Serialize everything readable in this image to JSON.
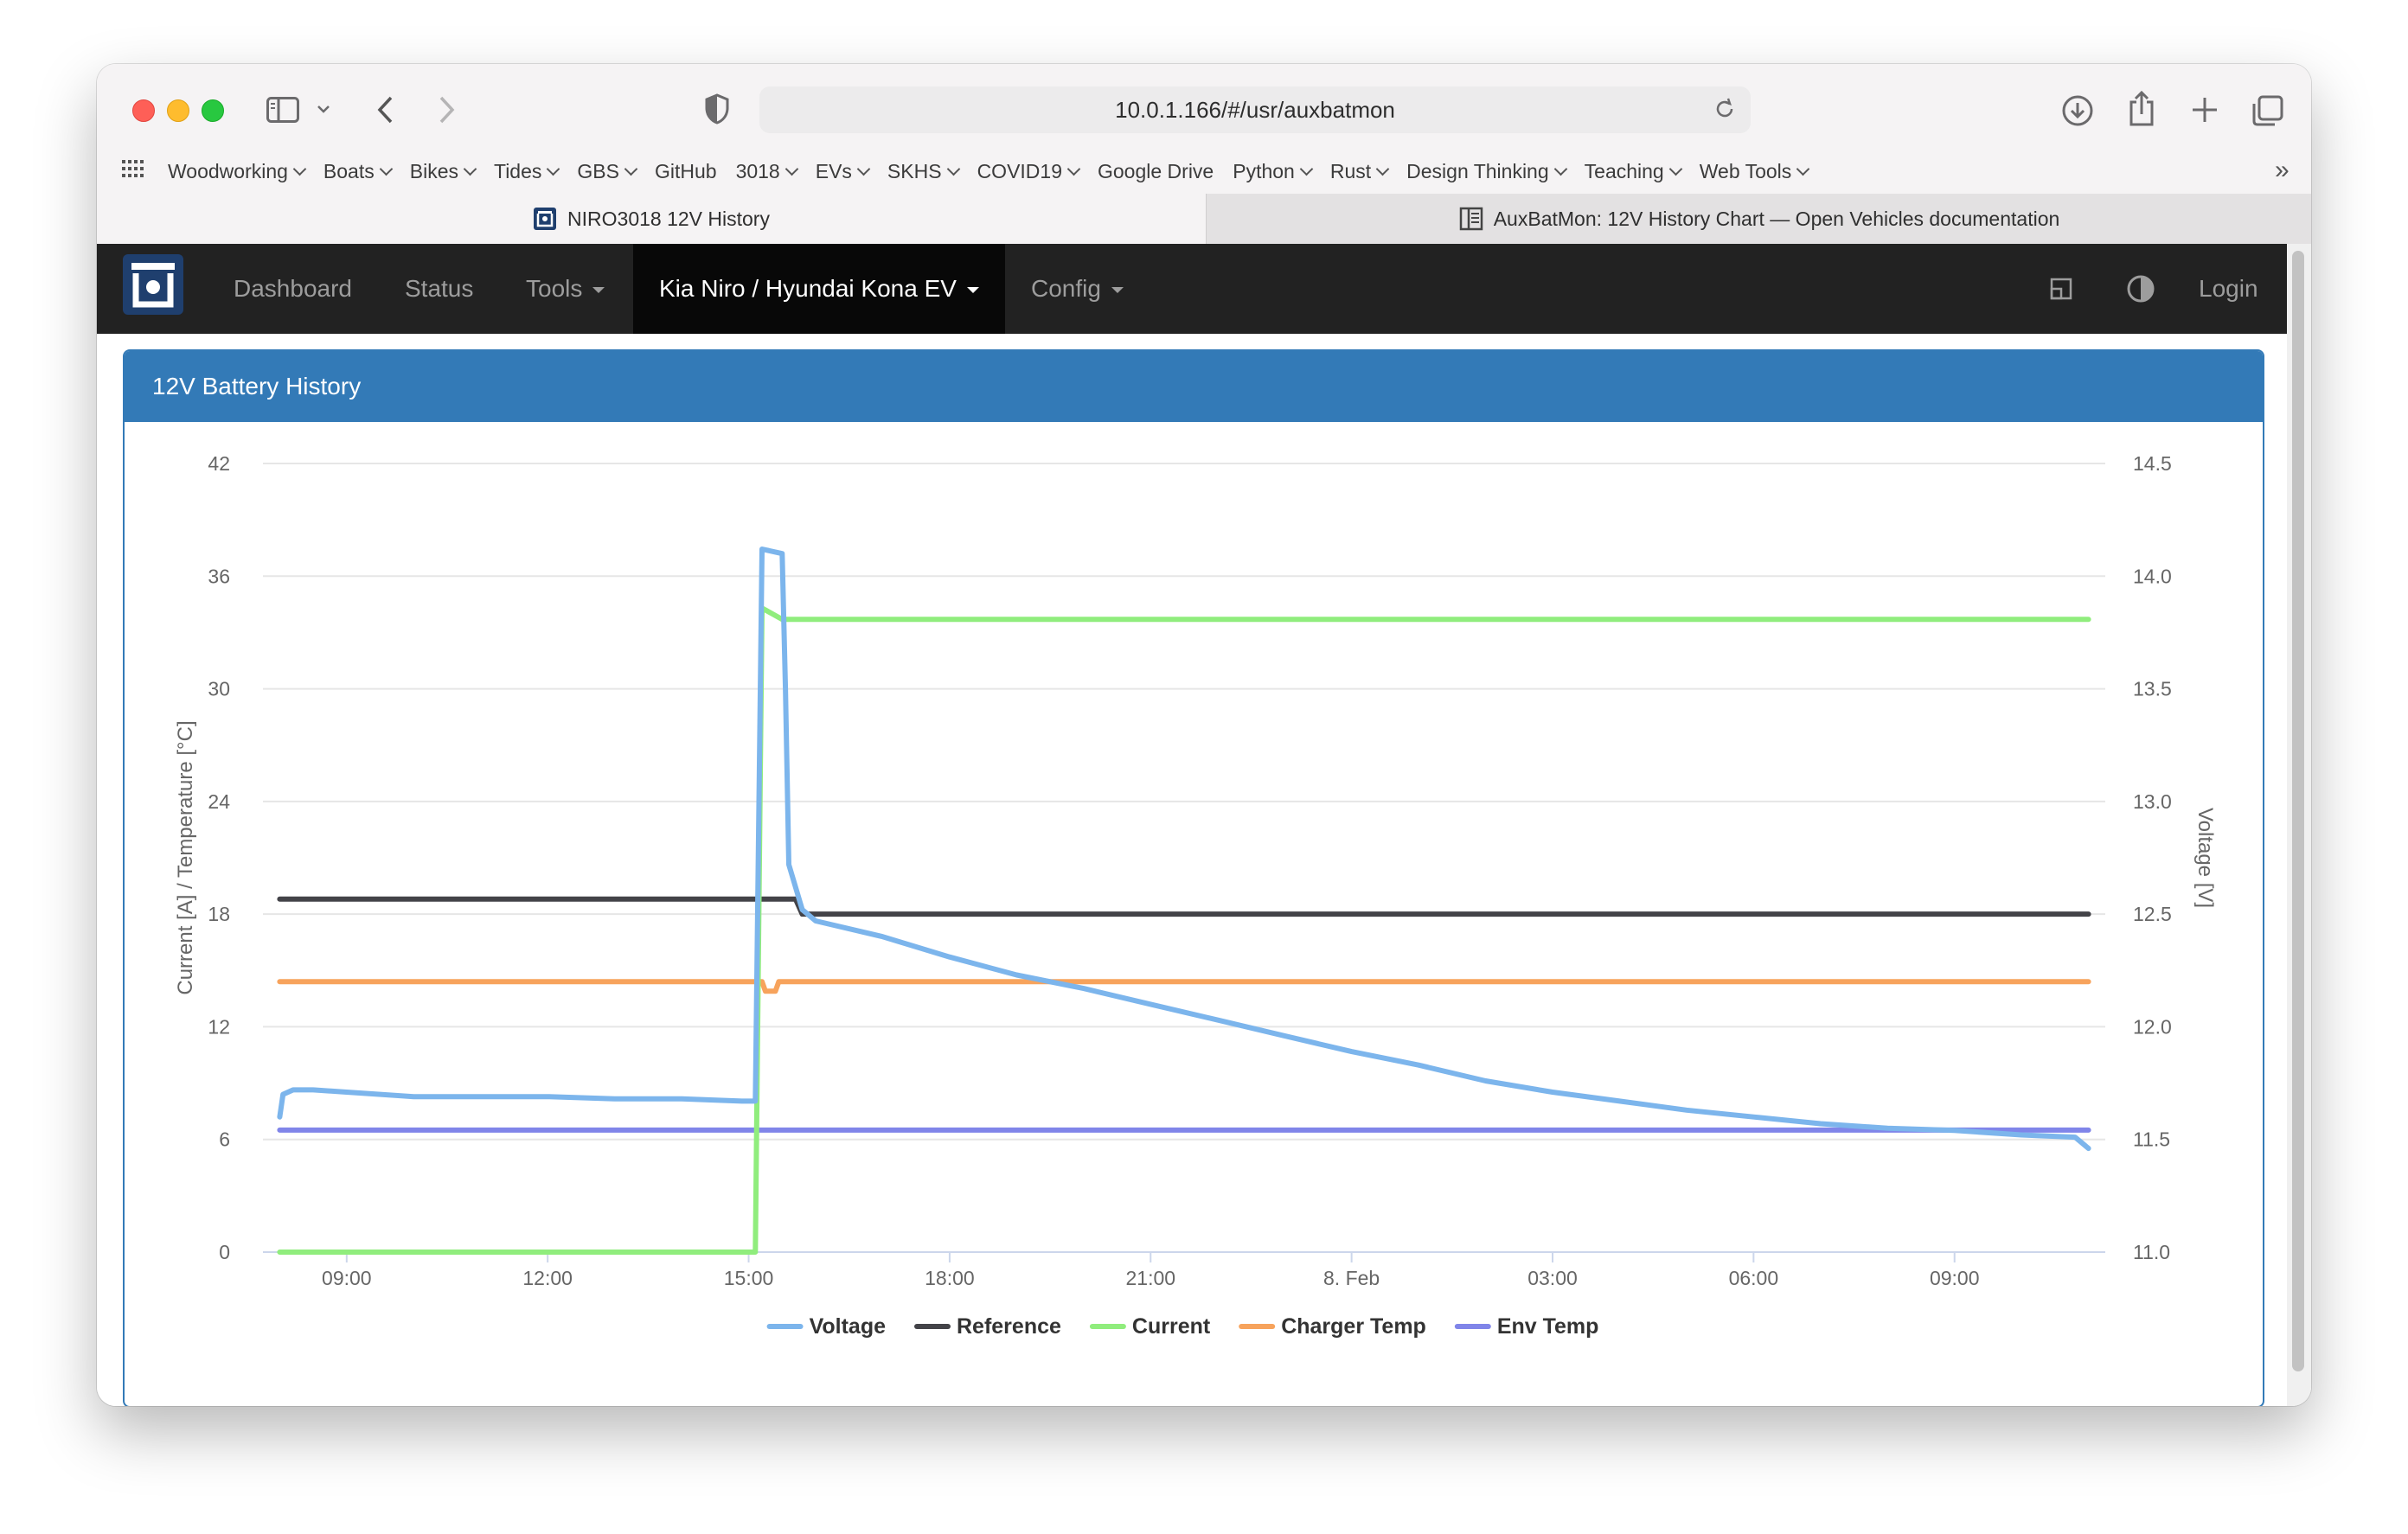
{
  "browser": {
    "url": "10.0.1.166/#/usr/auxbatmon",
    "bookmarks": [
      {
        "label": "Woodworking",
        "dropdown": true
      },
      {
        "label": "Boats",
        "dropdown": true
      },
      {
        "label": "Bikes",
        "dropdown": true
      },
      {
        "label": "Tides",
        "dropdown": true
      },
      {
        "label": "GBS",
        "dropdown": true
      },
      {
        "label": "GitHub",
        "dropdown": false
      },
      {
        "label": "3018",
        "dropdown": true
      },
      {
        "label": "EVs",
        "dropdown": true
      },
      {
        "label": "SKHS",
        "dropdown": true
      },
      {
        "label": "COVID19",
        "dropdown": true
      },
      {
        "label": "Google Drive",
        "dropdown": false
      },
      {
        "label": "Python",
        "dropdown": true
      },
      {
        "label": "Rust",
        "dropdown": true
      },
      {
        "label": "Design Thinking",
        "dropdown": true
      },
      {
        "label": "Teaching",
        "dropdown": true
      },
      {
        "label": "Web Tools",
        "dropdown": true
      }
    ],
    "tabs": [
      {
        "label": "NIRO3018 12V History",
        "active": true
      },
      {
        "label": "AuxBatMon: 12V History Chart — Open Vehicles documentation",
        "active": false
      }
    ]
  },
  "navbar": {
    "items": {
      "dashboard": "Dashboard",
      "status": "Status",
      "tools": "Tools",
      "vehicle": "Kia Niro / Hyundai Kona EV",
      "config": "Config",
      "login": "Login"
    }
  },
  "panel": {
    "title": "12V Battery History"
  },
  "colors": {
    "voltage": "#7cb5ec",
    "reference": "#434348",
    "current": "#90ed7d",
    "charger_temp": "#f7a35c",
    "env_temp": "#8085e9",
    "panel": "#337ab7"
  },
  "chart_data": {
    "type": "line",
    "title": "",
    "x_unit": "hours since 00:00 on the first day (values past 24 are on 8. Feb)",
    "x_range": [
      7.75,
      35.25
    ],
    "x_ticks": [
      {
        "x": 9,
        "label": "09:00"
      },
      {
        "x": 12,
        "label": "12:00"
      },
      {
        "x": 15,
        "label": "15:00"
      },
      {
        "x": 18,
        "label": "18:00"
      },
      {
        "x": 21,
        "label": "21:00"
      },
      {
        "x": 24,
        "label": "8. Feb"
      },
      {
        "x": 27,
        "label": "03:00"
      },
      {
        "x": 30,
        "label": "06:00"
      },
      {
        "x": 33,
        "label": "09:00"
      }
    ],
    "y_left": {
      "label": "Current [A] / Temperature [°C]",
      "min": 0,
      "max": 42,
      "ticks": [
        0,
        6,
        12,
        18,
        24,
        30,
        36,
        42
      ]
    },
    "y_right": {
      "label": "Voltage [V]",
      "min": 11.0,
      "max": 14.5,
      "ticks": [
        "11.0",
        "11.5",
        "12.0",
        "12.5",
        "13.0",
        "13.5",
        "14.0",
        "14.5"
      ]
    },
    "grid": true,
    "legend_position": "bottom-center",
    "series": [
      {
        "name": "Voltage",
        "axis": "right",
        "color": "#7cb5ec",
        "x": [
          8.0,
          8.05,
          8.2,
          8.5,
          9.0,
          10.0,
          11.0,
          12.0,
          13.0,
          14.0,
          14.9,
          15.1,
          15.2,
          15.5,
          15.55,
          15.6,
          15.8,
          16.0,
          17.0,
          18.0,
          19.0,
          20.0,
          21.0,
          22.0,
          23.0,
          24.0,
          25.0,
          26.0,
          27.0,
          28.0,
          29.0,
          30.0,
          31.0,
          32.0,
          33.0,
          34.0,
          34.8,
          35.0
        ],
        "y": [
          11.6,
          11.7,
          11.72,
          11.72,
          11.71,
          11.69,
          11.69,
          11.69,
          11.68,
          11.68,
          11.67,
          11.67,
          14.12,
          14.1,
          13.5,
          12.72,
          12.52,
          12.47,
          12.4,
          12.31,
          12.23,
          12.17,
          12.1,
          12.03,
          11.96,
          11.89,
          11.83,
          11.76,
          11.71,
          11.67,
          11.63,
          11.6,
          11.57,
          11.55,
          11.54,
          11.52,
          11.51,
          11.46
        ]
      },
      {
        "name": "Reference",
        "axis": "left",
        "color": "#434348",
        "x": [
          8.0,
          15.7,
          15.8,
          35.0
        ],
        "y": [
          18.8,
          18.8,
          18.0,
          18.0
        ]
      },
      {
        "name": "Current",
        "axis": "left",
        "color": "#90ed7d",
        "x": [
          8.0,
          15.1,
          15.2,
          15.4,
          15.5,
          35.0
        ],
        "y": [
          0,
          0,
          34.3,
          33.9,
          33.7,
          33.7
        ]
      },
      {
        "name": "Charger Temp",
        "axis": "left",
        "color": "#f7a35c",
        "x": [
          8.0,
          15.2,
          15.25,
          15.4,
          15.45,
          35.0
        ],
        "y": [
          14.4,
          14.4,
          13.9,
          13.9,
          14.4,
          14.4
        ]
      },
      {
        "name": "Env Temp",
        "axis": "left",
        "color": "#8085e9",
        "x": [
          8.0,
          35.0
        ],
        "y": [
          6.5,
          6.5
        ]
      }
    ]
  }
}
